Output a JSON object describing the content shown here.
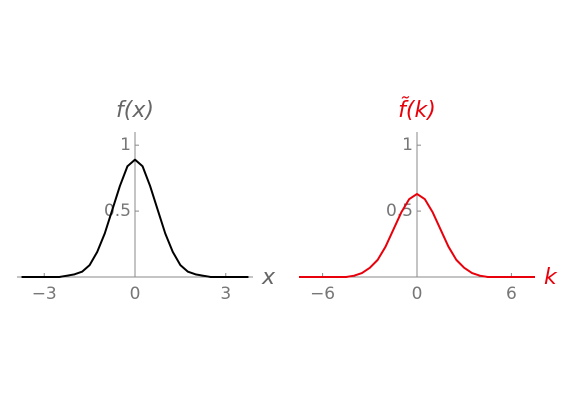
{
  "chart_data": [
    {
      "type": "line",
      "xlabel": "x",
      "ylabel": "f(x)",
      "label_color": "#666666",
      "x": [
        -3.75,
        -3.5,
        -3.25,
        -3,
        -2.75,
        -2.5,
        -2.25,
        -2,
        -1.75,
        -1.5,
        -1.25,
        -1,
        -0.75,
        -0.5,
        -0.25,
        0,
        0.25,
        0.5,
        0.75,
        1,
        1.25,
        1.5,
        1.75,
        2,
        2.25,
        2.5,
        2.75,
        3,
        3.25,
        3.5,
        3.75
      ],
      "series": [
        {
          "color": "#000000",
          "values": [
            0,
            0,
            0,
            0,
            0,
            0,
            0.01,
            0.02,
            0.04,
            0.09,
            0.19,
            0.33,
            0.51,
            0.69,
            0.84,
            0.89,
            0.84,
            0.69,
            0.51,
            0.33,
            0.19,
            0.09,
            0.04,
            0.02,
            0.01,
            0,
            0,
            0,
            0,
            0,
            0
          ]
        }
      ],
      "xlim": [
        -3.9,
        3.9
      ],
      "ylim": [
        0,
        1.1
      ],
      "xticks": [
        {
          "value": -3,
          "label": "−3"
        },
        0,
        3
      ],
      "yticks": [
        0.5,
        1
      ]
    },
    {
      "type": "line",
      "xlabel": "k",
      "ylabel": "f̃(k)",
      "label_color": "#e8000b",
      "x": [
        -7.5,
        -7,
        -6.5,
        -6,
        -5.5,
        -5,
        -4.5,
        -4,
        -3.5,
        -3,
        -2.5,
        -2,
        -1.5,
        -1,
        -0.5,
        0,
        0.5,
        1,
        1.5,
        2,
        2.5,
        3,
        3.5,
        4,
        4.5,
        5,
        5.5,
        6,
        6.5,
        7,
        7.5
      ],
      "series": [
        {
          "color": "#e8000b",
          "values": [
            0,
            0,
            0,
            0,
            0,
            0,
            0,
            0.01,
            0.03,
            0.07,
            0.13,
            0.23,
            0.36,
            0.49,
            0.59,
            0.63,
            0.59,
            0.49,
            0.36,
            0.23,
            0.13,
            0.07,
            0.03,
            0.01,
            0,
            0,
            0,
            0,
            0,
            0,
            0
          ]
        }
      ],
      "xlim": [
        -7.5,
        7.5
      ],
      "ylim": [
        0,
        1.1
      ],
      "xticks": [
        {
          "value": -6,
          "label": "−6"
        },
        0,
        6
      ],
      "yticks": [
        0.5,
        1
      ]
    }
  ]
}
